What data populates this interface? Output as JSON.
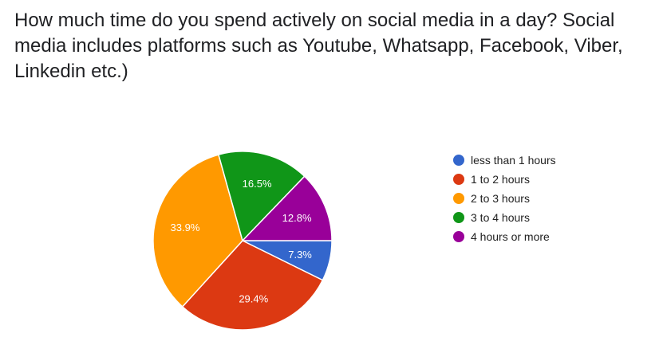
{
  "question": "How much time do you spend actively on social media in a day? Social media includes platforms such as Youtube, Whatsapp, Facebook, Viber, Linkedin etc.)",
  "chart_data": {
    "type": "pie",
    "title": "",
    "start_angle_deg": 90,
    "direction": "clockwise",
    "legend_position": "right",
    "slices": [
      {
        "label": "less than 1 hours",
        "value": 7.3,
        "display": "7.3%",
        "color": "#3366cc"
      },
      {
        "label": "1 to 2 hours",
        "value": 29.4,
        "display": "29.4%",
        "color": "#dc3912"
      },
      {
        "label": "2 to 3 hours",
        "value": 33.9,
        "display": "33.9%",
        "color": "#ff9900"
      },
      {
        "label": "3 to 4 hours",
        "value": 16.5,
        "display": "16.5%",
        "color": "#109618"
      },
      {
        "label": "4 hours or more",
        "value": 12.8,
        "display": "12.8%",
        "color": "#990099"
      }
    ]
  }
}
